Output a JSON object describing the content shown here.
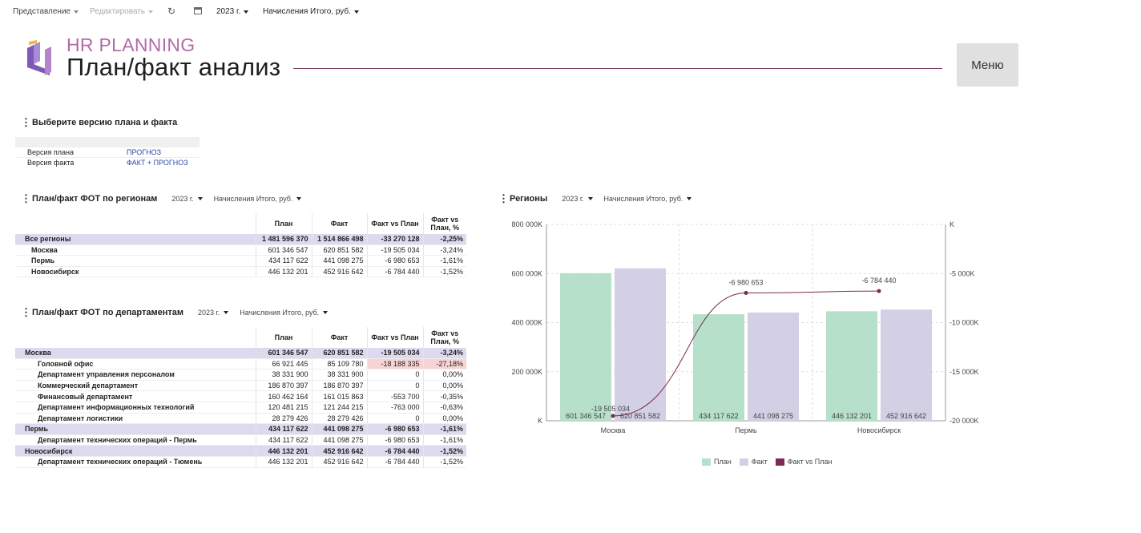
{
  "toolbar": {
    "view_label": "Представление",
    "edit_label": "Редактировать",
    "year": "2023 г.",
    "measure": "Начисления Итого, руб."
  },
  "header": {
    "brand": "HR PLANNING",
    "title": "План/факт анализ",
    "menu_label": "Меню"
  },
  "colors": {
    "plan": "#b7e0cb",
    "fact": "#d3cfe4",
    "diff": "#7a2a55",
    "accent": "#b36aa8",
    "total_row": "#ddd9ee"
  },
  "version_section": {
    "title": "Выберите версию плана и факта",
    "rows": [
      {
        "label": "Версия плана",
        "value": "ПРОГНОЗ"
      },
      {
        "label": "Версия факта",
        "value": "ФАКТ + ПРОГНОЗ"
      }
    ]
  },
  "regions_table": {
    "title": "План/факт ФОТ по регионам",
    "year": "2023 г.",
    "measure": "Начисления Итого, руб.",
    "headers": [
      "План",
      "Факт",
      "Факт vs План",
      "Факт vs План, %"
    ],
    "rows": [
      {
        "name": "Все регионы",
        "plan": "1 481 596 370",
        "fact": "1 514 866 498",
        "diff": "-33 270 128",
        "pct": "-2,25%"
      },
      {
        "name": "Москва",
        "plan": "601 346 547",
        "fact": "620 851 582",
        "diff": "-19 505 034",
        "pct": "-3,24%"
      },
      {
        "name": "Пермь",
        "plan": "434 117 622",
        "fact": "441 098 275",
        "diff": "-6 980 653",
        "pct": "-1,61%"
      },
      {
        "name": "Новосибирск",
        "plan": "446 132 201",
        "fact": "452 916 642",
        "diff": "-6 784 440",
        "pct": "-1,52%"
      }
    ]
  },
  "dept_table": {
    "title": "План/факт ФОТ по департаментам",
    "year": "2023 г.",
    "measure": "Начисления Итого, руб.",
    "headers": [
      "План",
      "Факт",
      "Факт vs План",
      "Факт vs План, %"
    ],
    "rows": [
      {
        "name": "Москва",
        "plan": "601 346 547",
        "fact": "620 851 582",
        "diff": "-19 505 034",
        "pct": "-3,24%"
      },
      {
        "name": "Головной офис",
        "plan": "66 921 445",
        "fact": "85 109 780",
        "diff": "-18 188 335",
        "pct": "-27,18%"
      },
      {
        "name": "Департамент управления персоналом",
        "plan": "38 331 900",
        "fact": "38 331 900",
        "diff": "0",
        "pct": "0,00%"
      },
      {
        "name": "Коммерческий департамент",
        "plan": "186 870 397",
        "fact": "186 870 397",
        "diff": "0",
        "pct": "0,00%"
      },
      {
        "name": "Финансовый департамент",
        "plan": "160 462 164",
        "fact": "161 015 863",
        "diff": "-553 700",
        "pct": "-0,35%"
      },
      {
        "name": "Департамент информационных технологий",
        "plan": "120 481 215",
        "fact": "121 244 215",
        "diff": "-763 000",
        "pct": "-0,63%"
      },
      {
        "name": "Департамент логистики",
        "plan": "28 279 426",
        "fact": "28 279 426",
        "diff": "0",
        "pct": "0,00%"
      },
      {
        "name": "Пермь",
        "plan": "434 117 622",
        "fact": "441 098 275",
        "diff": "-6 980 653",
        "pct": "-1,61%"
      },
      {
        "name": "Департамент технических операций - Пермь",
        "plan": "434 117 622",
        "fact": "441 098 275",
        "diff": "-6 980 653",
        "pct": "-1,61%"
      },
      {
        "name": "Новосибирск",
        "plan": "446 132 201",
        "fact": "452 916 642",
        "diff": "-6 784 440",
        "pct": "-1,52%"
      },
      {
        "name": "Департамент технических операций - Тюмень",
        "plan": "446 132 201",
        "fact": "452 916 642",
        "diff": "-6 784 440",
        "pct": "-1,52%"
      }
    ]
  },
  "chart_section": {
    "title": "Регионы",
    "year": "2023 г.",
    "measure": "Начисления Итого, руб."
  },
  "chart_data": {
    "type": "bar",
    "categories": [
      "Москва",
      "Пермь",
      "Новосибирск"
    ],
    "series": [
      {
        "name": "План",
        "type": "bar",
        "axis": "left",
        "values": [
          601346547,
          434117622,
          446132201
        ],
        "labels": [
          "601 346 547",
          "434 117 622",
          "446 132 201"
        ]
      },
      {
        "name": "Факт",
        "type": "bar",
        "axis": "left",
        "values": [
          620851582,
          441098275,
          452916642
        ],
        "labels": [
          "620 851 582",
          "441 098 275",
          "452 916 642"
        ]
      },
      {
        "name": "Факт vs План",
        "type": "line",
        "axis": "right",
        "values": [
          -19505034,
          -6980653,
          -6784440
        ],
        "labels": [
          "-19 505 034",
          "-6 980 653",
          "-6 784 440"
        ]
      }
    ],
    "left_axis": {
      "min": 0,
      "max": 800000000,
      "ticks": [
        "K",
        "200 000K",
        "400 000K",
        "600 000K",
        "800 000K"
      ]
    },
    "right_axis": {
      "min": -20000000,
      "max": 0,
      "ticks": [
        "-20 000K",
        "-15 000K",
        "-10 000K",
        "-5 000K",
        "K"
      ]
    },
    "legend": [
      "План",
      "Факт",
      "Факт vs План"
    ],
    "legend_position": "bottom",
    "grid": true
  }
}
